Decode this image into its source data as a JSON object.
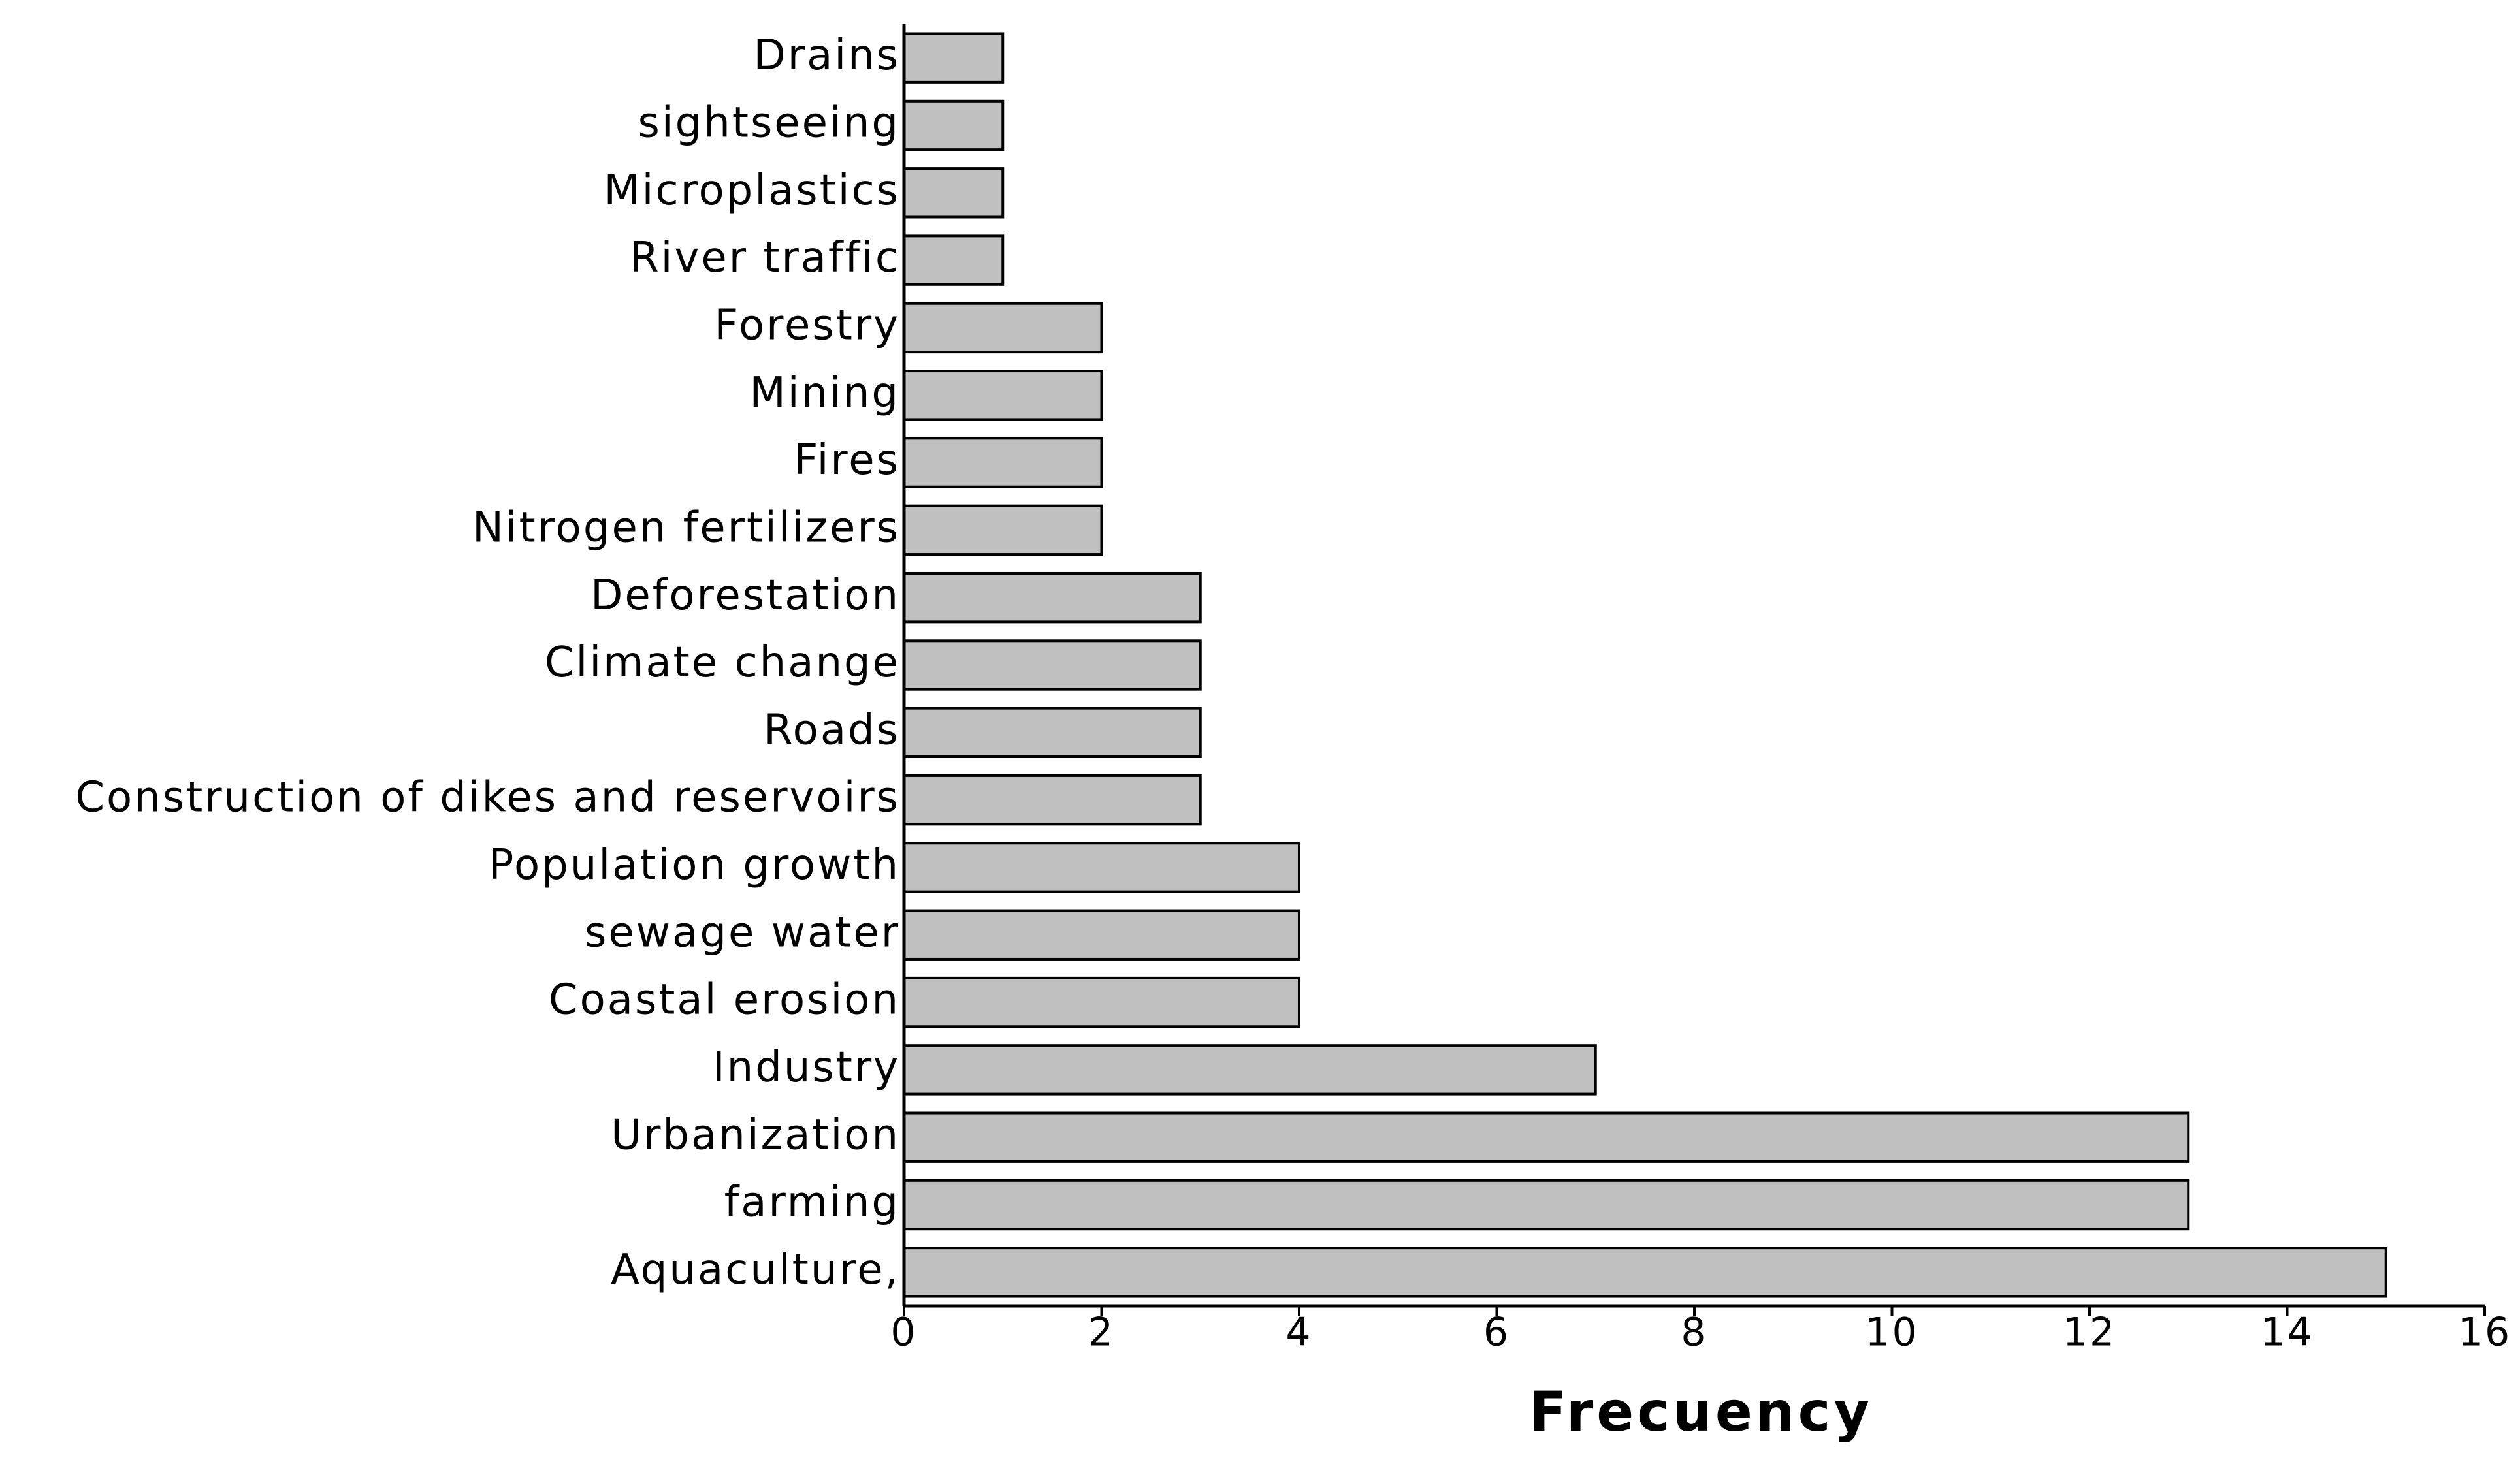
{
  "chart_data": {
    "type": "bar",
    "orientation": "horizontal",
    "x_label": "Frecuency",
    "categories": [
      "Drains",
      "sightseeing",
      "Microplastics",
      "River traffic",
      "Forestry",
      "Mining",
      "Fires",
      "Nitrogen fertilizers",
      "Deforestation",
      "Climate change",
      "Roads",
      "Construction of dikes and reservoirs",
      "Population growth",
      "sewage water",
      "Coastal erosion",
      "Industry",
      "Urbanization",
      "farming",
      "Aquaculture,"
    ],
    "values": [
      1,
      1,
      1,
      1,
      2,
      2,
      2,
      2,
      3,
      3,
      3,
      3,
      4,
      4,
      4,
      7,
      13,
      13,
      15
    ],
    "color": "#c0c0c0",
    "xlim": [
      0,
      16
    ],
    "xticks": [
      0,
      2,
      4,
      6,
      8,
      10,
      12,
      14,
      16
    ],
    "grid": false
  }
}
